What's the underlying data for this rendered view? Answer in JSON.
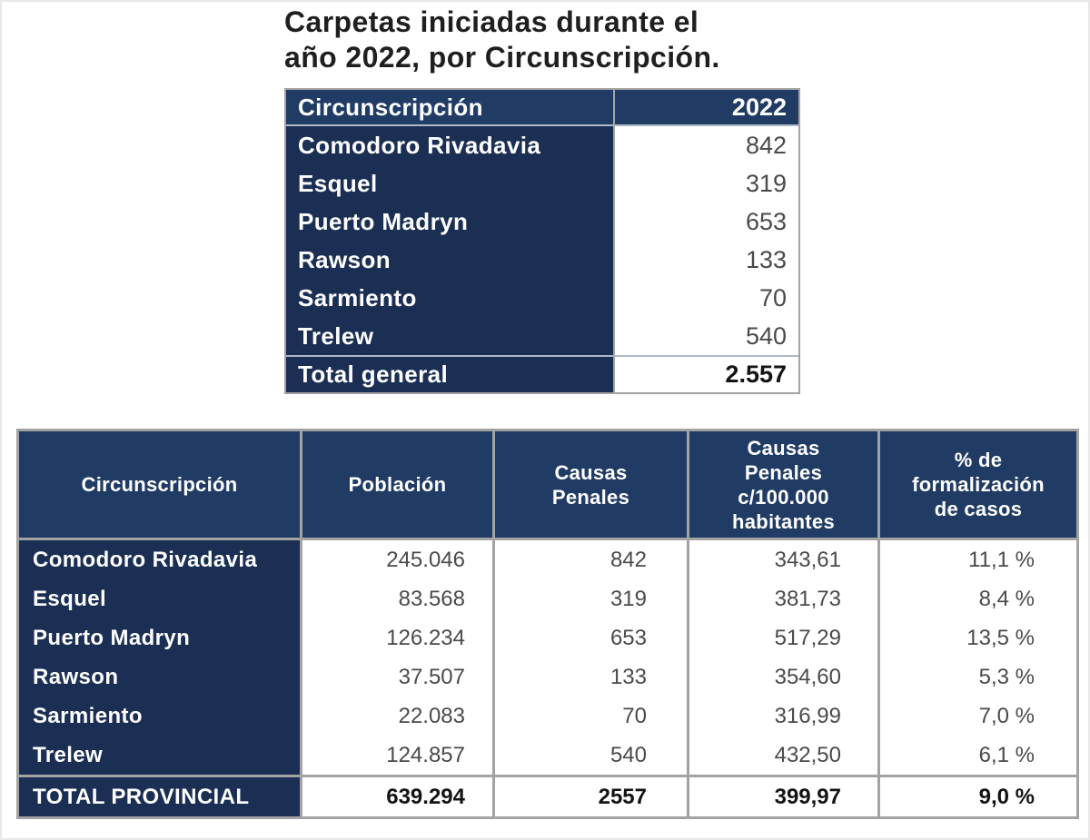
{
  "colors": {
    "navy_header": "#213c64",
    "navy_row": "#1a2f53",
    "border_gray": "#a3a3a3",
    "separator_light": "#aeb8c6",
    "value_text": "#4a4a4a",
    "total_text": "#141414",
    "title_text": "#1f1f1f",
    "background": "#ffffff"
  },
  "title": {
    "text": "Carpetas iniciadas durante el\naño 2022, por Circunscripción."
  },
  "table1": {
    "header": {
      "circunscripcion": "Circunscripción",
      "year": "2022"
    },
    "rows": [
      {
        "label": "Comodoro Rivadavia",
        "value": "842"
      },
      {
        "label": "Esquel",
        "value": "319"
      },
      {
        "label": "Puerto Madryn",
        "value": "653"
      },
      {
        "label": "Rawson",
        "value": "133"
      },
      {
        "label": "Sarmiento",
        "value": "70"
      },
      {
        "label": "Trelew",
        "value": "540"
      }
    ],
    "total": {
      "label": "Total general",
      "value": "2.557"
    }
  },
  "table2": {
    "header": {
      "circunscripcion": "Circunscripción",
      "poblacion": "Población",
      "causas": "Causas\nPenales",
      "causas_100k": "Causas\nPenales\nc/100.000\nhabitantes",
      "formalizacion": "% de\nformalización\nde casos"
    },
    "rows": [
      {
        "label": "Comodoro Rivadavia",
        "poblacion": "245.046",
        "causas": "842",
        "causas_100k": "343,61",
        "formalizacion": "11,1 %"
      },
      {
        "label": "Esquel",
        "poblacion": "83.568",
        "causas": "319",
        "causas_100k": "381,73",
        "formalizacion": "8,4 %"
      },
      {
        "label": "Puerto Madryn",
        "poblacion": "126.234",
        "causas": "653",
        "causas_100k": "517,29",
        "formalizacion": "13,5 %"
      },
      {
        "label": "Rawson",
        "poblacion": "37.507",
        "causas": "133",
        "causas_100k": "354,60",
        "formalizacion": "5,3 %"
      },
      {
        "label": "Sarmiento",
        "poblacion": "22.083",
        "causas": "70",
        "causas_100k": "316,99",
        "formalizacion": "7,0 %"
      },
      {
        "label": "Trelew",
        "poblacion": "124.857",
        "causas": "540",
        "causas_100k": "432,50",
        "formalizacion": "6,1 %"
      }
    ],
    "total": {
      "label": "TOTAL PROVINCIAL",
      "poblacion": "639.294",
      "causas": "2557",
      "causas_100k": "399,97",
      "formalizacion": "9,0 %"
    }
  }
}
